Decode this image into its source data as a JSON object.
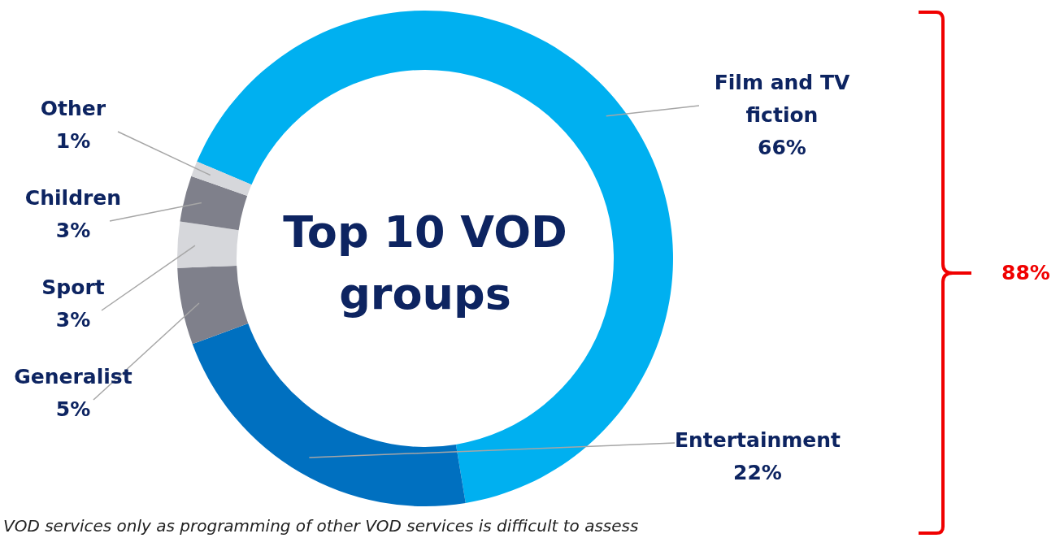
{
  "chart_data": {
    "type": "donut",
    "title": "Top 10 VOD groups",
    "categories": [
      "Film and TV fiction",
      "Entertainment",
      "Generalist",
      "Sport",
      "Children",
      "Other"
    ],
    "values": [
      66,
      22,
      5,
      3,
      3,
      1
    ],
    "value_labels": [
      "66%",
      "22%",
      "5%",
      "3%",
      "3%",
      "1%"
    ],
    "colors": [
      "#00b0f0",
      "#0070c0",
      "#7f808b",
      "#d6d7db",
      "#7f808b",
      "#d6d7db"
    ],
    "legend": false,
    "annotations": [
      "88%",
      "VOD services only as programming of other VOD services is difficult to assess"
    ]
  }
}
